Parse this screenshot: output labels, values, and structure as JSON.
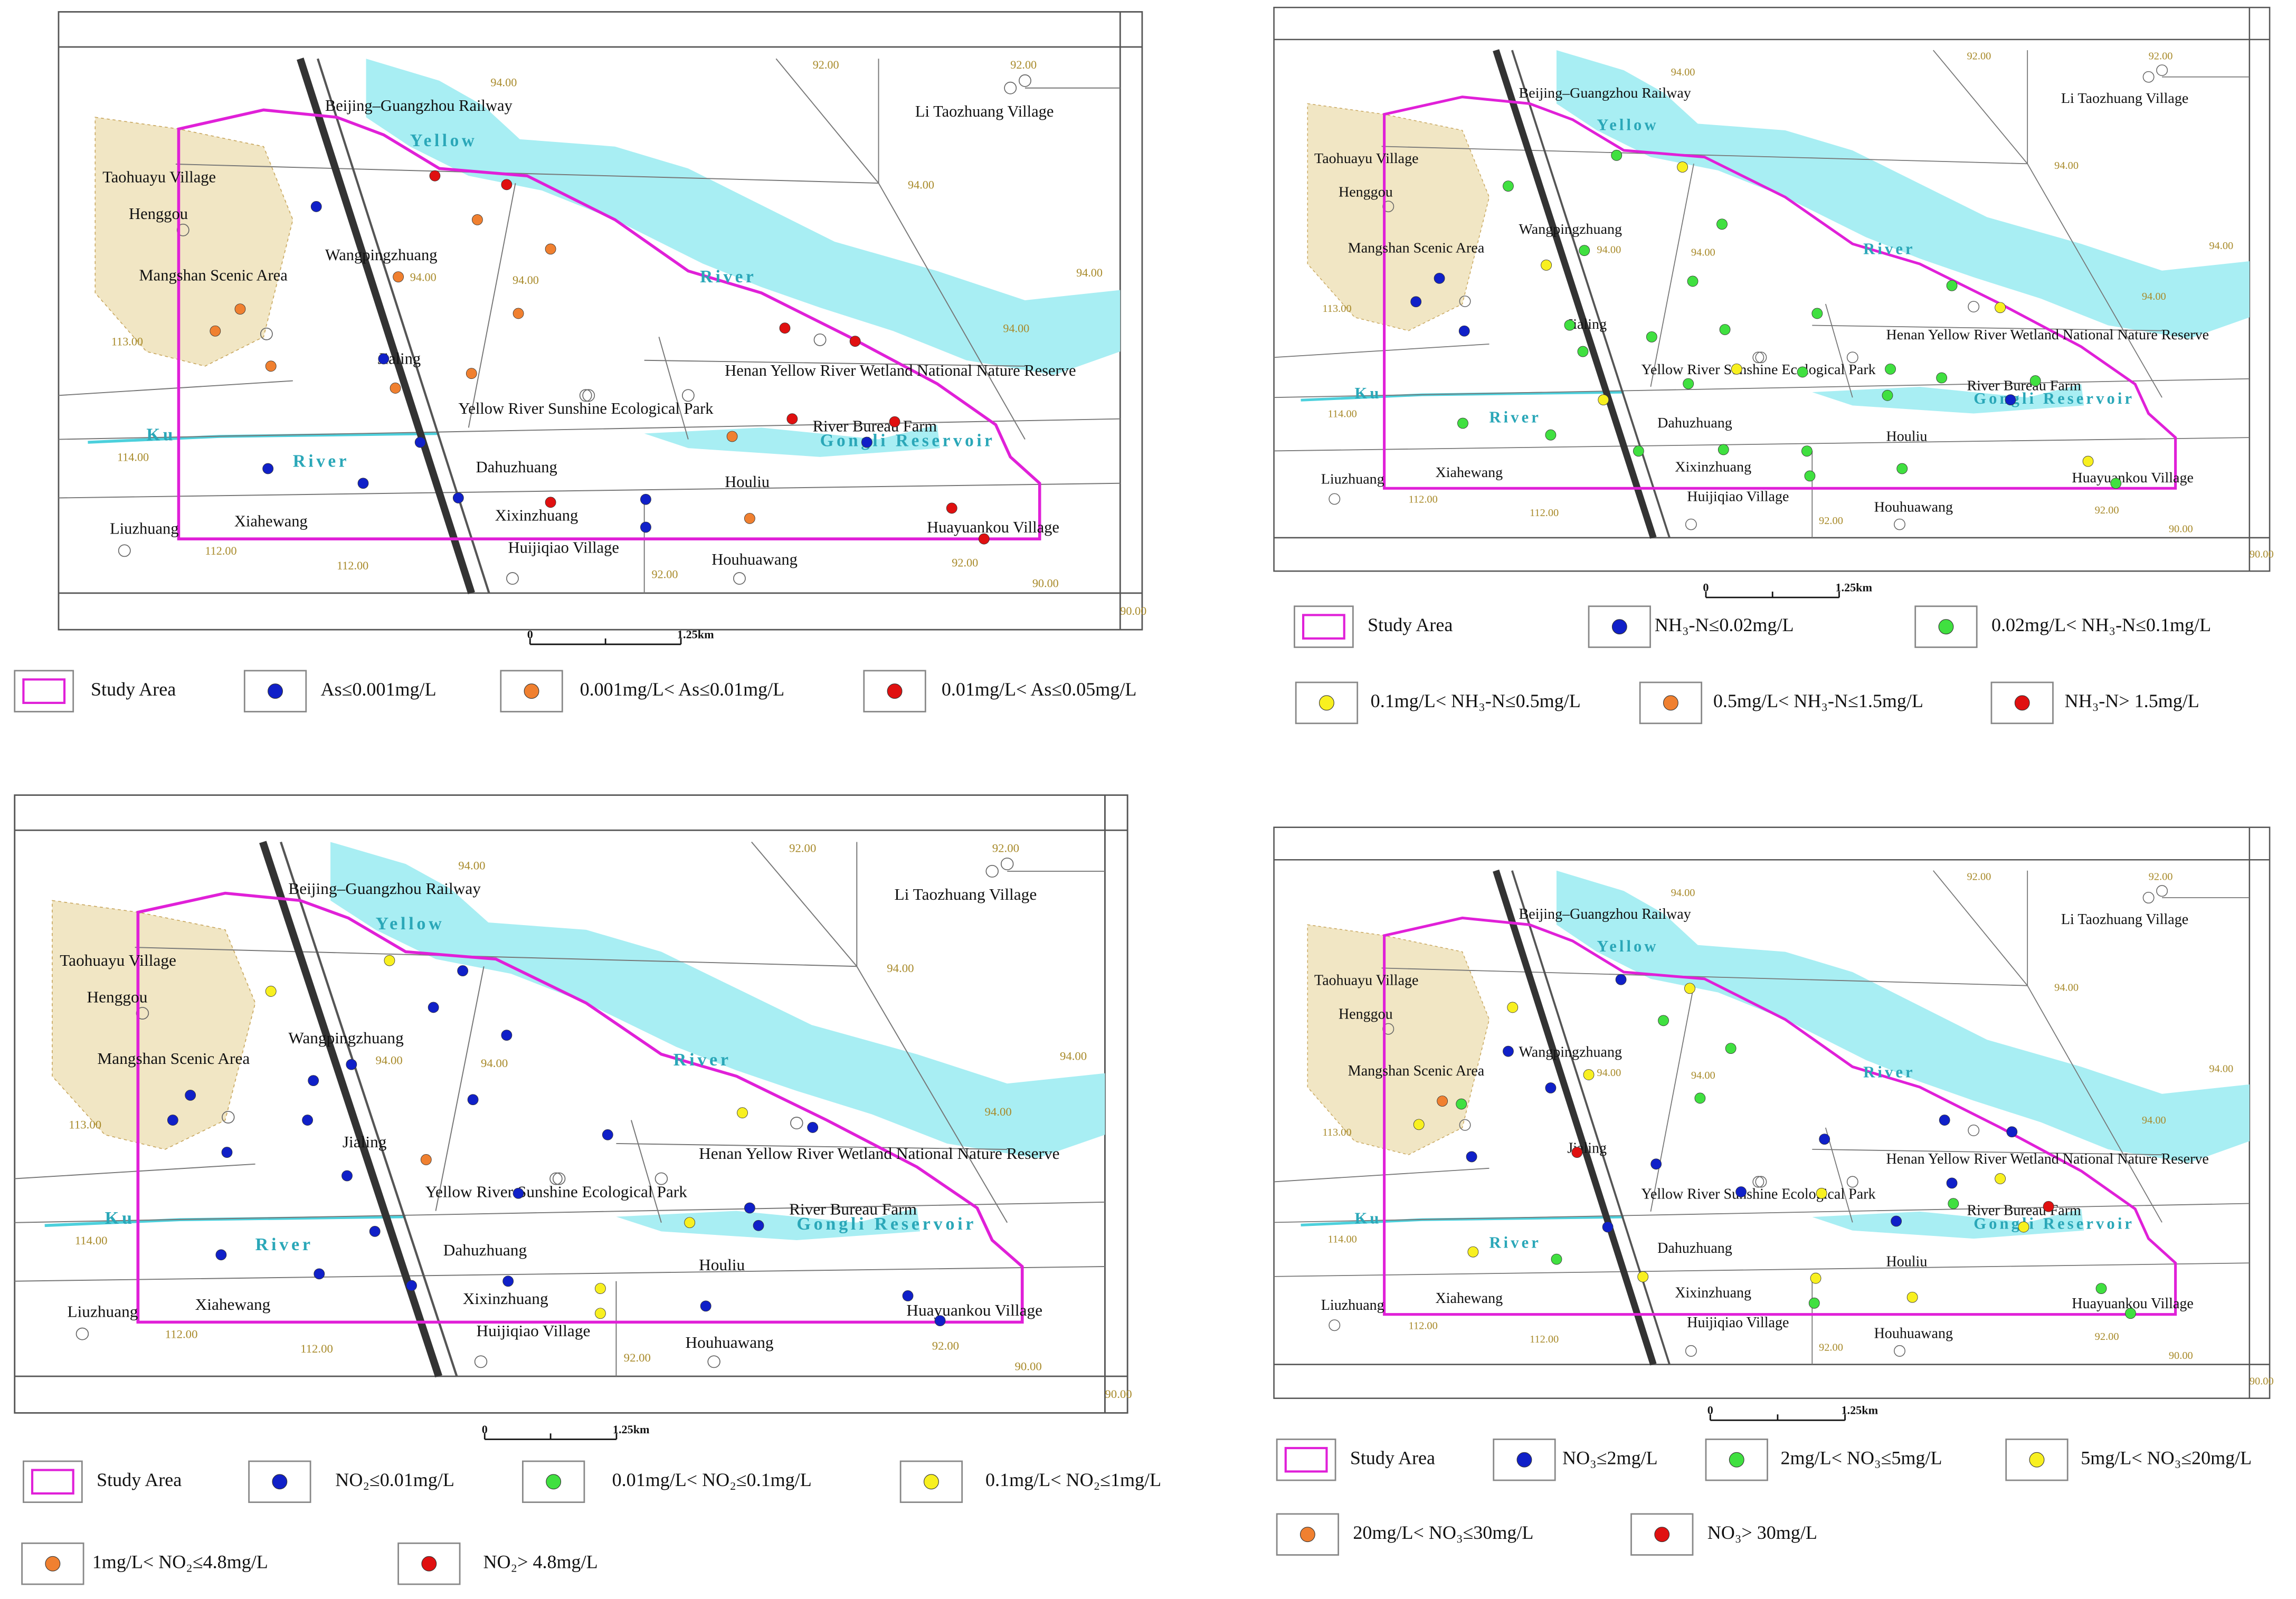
{
  "map_labels": [
    "Beijing–Guangzhou Railway",
    "Li Taozhuang Village",
    "Yellow",
    "River",
    "Taohuayu Village",
    "Henggou",
    "Wangpingzhuang",
    "Mangshan Scenic Area",
    "Jialing",
    "Yellow River Sunshine Ecological Park",
    "Henan Yellow River Wetland National Nature Reserve",
    "River Bureau Farm",
    "Gongli Reservoir",
    "Ku",
    "River",
    "Dahuzhuang",
    "Houliu",
    "Xixinzhuang",
    "Liuzhuang",
    "Xiahewang",
    "Huijiqiao Village",
    "Houhuawang",
    "Huayuankou Village"
  ],
  "contour_labels": [
    "94.00",
    "92.00",
    "92.00",
    "94.00",
    "94.00",
    "94.00",
    "94.00",
    "94.00",
    "113.00",
    "114.00",
    "112.00",
    "112.00",
    "92.00",
    "92.00",
    "90.00",
    "90.00"
  ],
  "panels": [
    {
      "legend": [
        {
          "label": "Study Area",
          "color": "#e020d8"
        },
        {
          "label": "As≤0.001mg/L",
          "color": "#1020c8"
        },
        {
          "label": "0.001mg/L< As≤0.01mg/L",
          "color": "#f08030"
        },
        {
          "label": "0.01mg/L< As≤0.05mg/L",
          "color": "#e01010"
        }
      ],
      "scale_bar": [
        "0",
        "1.25km"
      ]
    },
    {
      "legend": [
        {
          "label": "Study Area",
          "color": "#e020d8"
        },
        {
          "label": "NH₃-N≤0.02mg/L",
          "color": "#1020c8"
        },
        {
          "label": "0.02mg/L< NH₃-N≤0.1mg/L",
          "color": "#40e040"
        },
        {
          "label": "0.1mg/L< NH₃-N≤0.5mg/L",
          "color": "#f8f020"
        },
        {
          "label": "0.5mg/L< NH₃-N≤1.5mg/L",
          "color": "#f08030"
        },
        {
          "label": "NH₃-N> 1.5mg/L",
          "color": "#e01010"
        }
      ],
      "scale_bar": [
        "0",
        "1.25km"
      ]
    },
    {
      "legend": [
        {
          "label": "Study Area",
          "color": "#e020d8"
        },
        {
          "label": "NO₂≤0.01mg/L",
          "color": "#1020c8"
        },
        {
          "label": "0.01mg/L< NO₂≤0.1mg/L",
          "color": "#40e040"
        },
        {
          "label": "0.1mg/L< NO₂≤1mg/L",
          "color": "#f8f020"
        },
        {
          "label": "1mg/L< NO₂≤4.8mg/L",
          "color": "#f08030"
        },
        {
          "label": "NO₂> 4.8mg/L",
          "color": "#e01010"
        }
      ],
      "scale_bar": [
        "0",
        "1.25km"
      ]
    },
    {
      "legend": [
        {
          "label": "Study Area",
          "color": "#e020d8"
        },
        {
          "label": "NO₃≤2mg/L",
          "color": "#1020c8"
        },
        {
          "label": "2mg/L< NO₃≤5mg/L",
          "color": "#40e040"
        },
        {
          "label": "5mg/L< NO₃≤20mg/L",
          "color": "#f8f020"
        },
        {
          "label": "20mg/L< NO₃≤30mg/L",
          "color": "#f08030"
        },
        {
          "label": "NO₃> 30mg/L",
          "color": "#e01010"
        }
      ],
      "scale_bar": [
        "0",
        "1.25km"
      ]
    }
  ]
}
